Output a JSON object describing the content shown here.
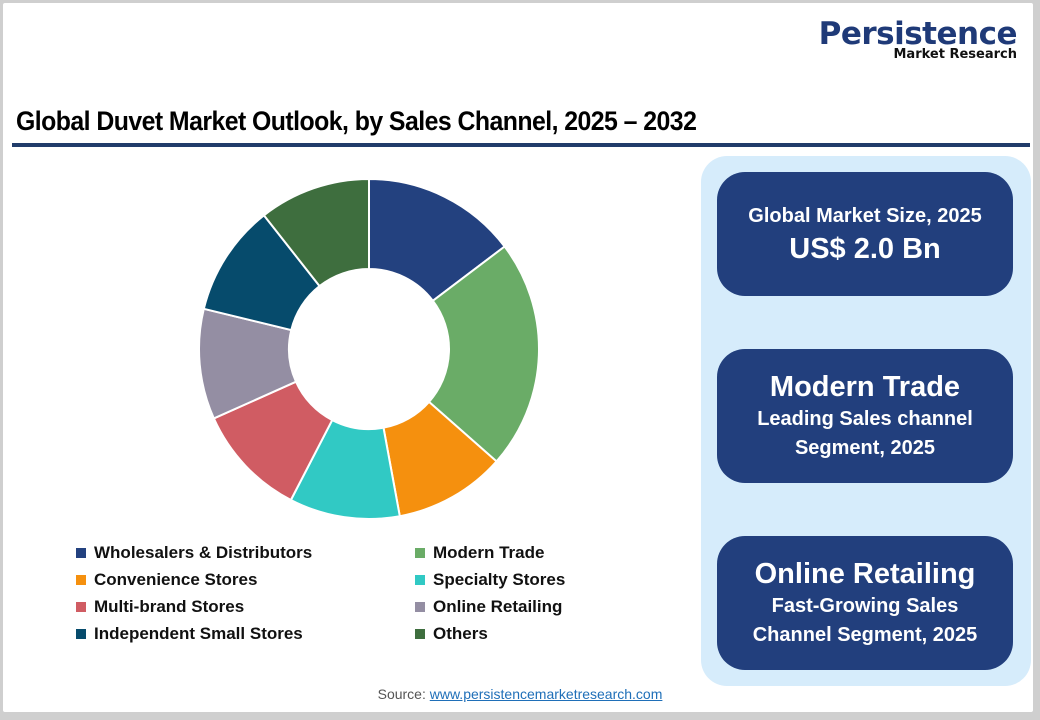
{
  "logo": {
    "main": "Persistence",
    "sub": "Market Research"
  },
  "title": "Global Duvet Market Outlook, by Sales Channel, 2025 – 2032",
  "chart_data": {
    "type": "pie",
    "subtype": "donut",
    "title": "Global Duvet Market Outlook, by Sales Channel, 2025 – 2032",
    "categories": [
      "Wholesalers & Distributors",
      "Modern Trade",
      "Convenience Stores",
      "Specialty Stores",
      "Multi-brand Stores",
      "Online Retailing",
      "Independent Small Stores",
      "Others"
    ],
    "values": [
      14.7,
      21.8,
      10.6,
      10.5,
      10.7,
      10.5,
      10.6,
      10.6
    ],
    "unit": "% share (estimated from slice angles)",
    "colors": [
      "#23417f",
      "#6aac67",
      "#f5900e",
      "#31c9c4",
      "#d05c63",
      "#948ea3",
      "#064b6c",
      "#3e6e3e"
    ],
    "legend_position": "bottom"
  },
  "legend": [
    {
      "label": "Wholesalers & Distributors",
      "color": "#23417f"
    },
    {
      "label": "Modern Trade",
      "color": "#6aac67"
    },
    {
      "label": "Convenience Stores",
      "color": "#f5900e"
    },
    {
      "label": "Specialty Stores",
      "color": "#31c9c4"
    },
    {
      "label": "Multi-brand Stores",
      "color": "#d05c63"
    },
    {
      "label": "Online Retailing",
      "color": "#948ea3"
    },
    {
      "label": "Independent Small Stores",
      "color": "#064b6c"
    },
    {
      "label": "Others",
      "color": "#3e6e3e"
    }
  ],
  "cards": [
    {
      "line1": "Global Market Size, 2025",
      "line2": "US$ 2.0 Bn"
    },
    {
      "line1": "Modern Trade",
      "line2": "Leading Sales channel",
      "line3": "Segment, 2025"
    },
    {
      "line1": "Online Retailing",
      "line2": "Fast-Growing Sales",
      "line3": "Channel Segment, 2025"
    }
  ],
  "source": {
    "label": "Source:",
    "link": "www.persistencemarketresearch.com"
  }
}
